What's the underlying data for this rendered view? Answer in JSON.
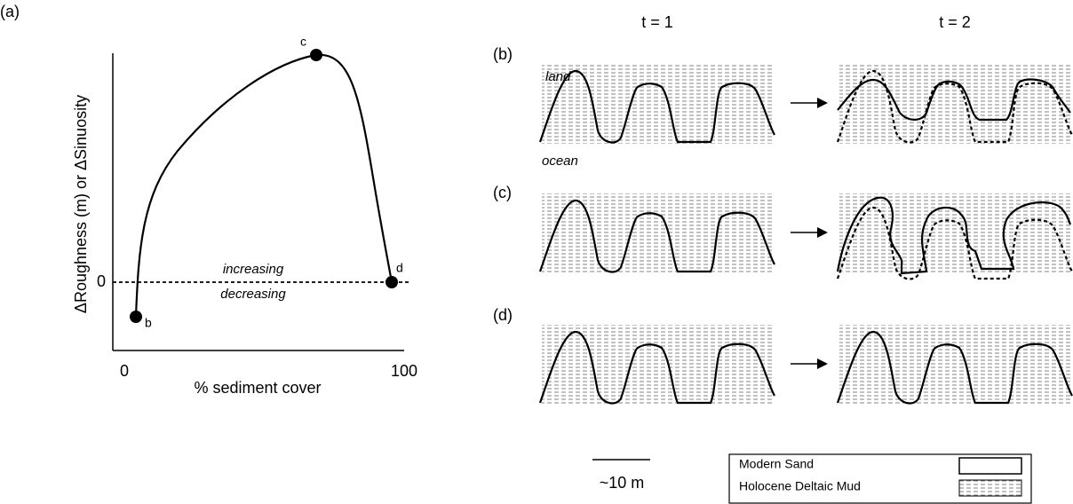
{
  "panel_a": {
    "label": "(a)",
    "y_axis_label": "ΔRoughness (m) or ΔSinuosity",
    "y_tick": "0",
    "x_ticks": [
      "0",
      "100"
    ],
    "x_axis_label": "% sediment cover",
    "zero_line_labels": [
      "increasing",
      "decreasing"
    ],
    "points": [
      "b",
      "c",
      "d"
    ]
  },
  "time_labels": [
    "t = 1",
    "t = 2"
  ],
  "panels": [
    {
      "label": "(b)",
      "annotations": [
        "land",
        "ocean"
      ]
    },
    {
      "label": "(c)"
    },
    {
      "label": "(d)"
    }
  ],
  "scale_bar": "~10 m",
  "legend": [
    "Modern Sand",
    "Holocene Deltaic Mud"
  ]
}
